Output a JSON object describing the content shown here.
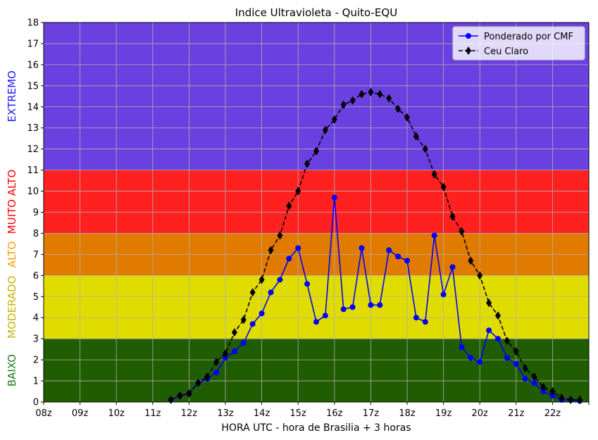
{
  "chart_data": {
    "type": "line",
    "title": "Indice Ultravioleta - Quito-EQU",
    "xlabel": "HORA UTC - hora de Brasilia + 3 horas",
    "ylabel": "",
    "xlim": [
      8,
      23
    ],
    "ylim": [
      0,
      18
    ],
    "x_tick_labels": [
      "08z",
      "09z",
      "10z",
      "11z",
      "12z",
      "13z",
      "14z",
      "15z",
      "16z",
      "17z",
      "18z",
      "19z",
      "20z",
      "21z",
      "22z"
    ],
    "y_ticks": [
      0,
      1,
      2,
      3,
      4,
      5,
      6,
      7,
      8,
      9,
      10,
      11,
      12,
      13,
      14,
      15,
      16,
      17,
      18
    ],
    "grid": true,
    "legend_position": "top-right",
    "bands": [
      {
        "label": "BAIXO",
        "from": 0,
        "to": 3,
        "color": "#205c00",
        "label_color": "#1e7a1e"
      },
      {
        "label": "MODERADO",
        "from": 3,
        "to": 6,
        "color": "#e0dc00",
        "label_color": "#c8b400"
      },
      {
        "label": "ALTO",
        "from": 6,
        "to": 8,
        "color": "#e07b00",
        "label_color": "#ff9a00"
      },
      {
        "label": "MUITO ALTO",
        "from": 8,
        "to": 11,
        "color": "#ff2020",
        "label_color": "#ff0000"
      },
      {
        "label": "EXTREMO",
        "from": 11,
        "to": 18,
        "color": "#6a40e0",
        "label_color": "#1a1aff"
      }
    ],
    "series": [
      {
        "name": "Ponderado por CMF",
        "color": "#0000ff",
        "linestyle": "solid",
        "marker": "circle",
        "x": [
          11.5,
          11.75,
          12.0,
          12.25,
          12.5,
          12.75,
          13.0,
          13.25,
          13.5,
          13.75,
          14.0,
          14.25,
          14.5,
          14.75,
          15.0,
          15.25,
          15.5,
          15.75,
          16.0,
          16.25,
          16.5,
          16.75,
          17.0,
          17.25,
          17.5,
          17.75,
          18.0,
          18.25,
          18.5,
          18.75,
          19.0,
          19.25,
          19.5,
          19.75,
          20.0,
          20.25,
          20.5,
          20.75,
          21.0,
          21.25,
          21.5,
          21.75,
          22.0,
          22.25,
          22.5,
          22.75
        ],
        "y": [
          0.1,
          0.3,
          0.4,
          0.9,
          1.1,
          1.4,
          2.1,
          2.4,
          2.8,
          3.7,
          4.2,
          5.2,
          5.8,
          6.8,
          7.3,
          5.6,
          3.8,
          4.1,
          9.7,
          4.4,
          4.5,
          7.3,
          4.6,
          4.6,
          7.2,
          6.9,
          6.7,
          4.0,
          3.8,
          7.9,
          5.1,
          6.4,
          2.6,
          2.1,
          1.9,
          3.4,
          3.0,
          2.1,
          1.8,
          1.1,
          0.9,
          0.5,
          0.3,
          0.1,
          0.1,
          0.05
        ]
      },
      {
        "name": "Ceu Claro",
        "color": "#000000",
        "linestyle": "dashed",
        "marker": "diamond",
        "x": [
          11.5,
          11.75,
          12.0,
          12.25,
          12.5,
          12.75,
          13.0,
          13.25,
          13.5,
          13.75,
          14.0,
          14.25,
          14.5,
          14.75,
          15.0,
          15.25,
          15.5,
          15.75,
          16.0,
          16.25,
          16.5,
          16.75,
          17.0,
          17.25,
          17.5,
          17.75,
          18.0,
          18.25,
          18.5,
          18.75,
          19.0,
          19.25,
          19.5,
          19.75,
          20.0,
          20.25,
          20.5,
          20.75,
          21.0,
          21.25,
          21.5,
          21.75,
          22.0,
          22.25,
          22.5,
          22.75
        ],
        "y": [
          0.1,
          0.3,
          0.4,
          0.9,
          1.2,
          1.9,
          2.3,
          3.3,
          3.9,
          5.2,
          5.8,
          7.2,
          7.9,
          9.3,
          10.0,
          11.3,
          11.9,
          12.9,
          13.4,
          14.1,
          14.3,
          14.6,
          14.7,
          14.6,
          14.4,
          13.9,
          13.5,
          12.6,
          12.0,
          10.8,
          10.2,
          8.8,
          8.1,
          6.7,
          6.0,
          4.7,
          4.1,
          2.9,
          2.4,
          1.6,
          1.2,
          0.7,
          0.5,
          0.2,
          0.1,
          0.1
        ]
      }
    ]
  }
}
